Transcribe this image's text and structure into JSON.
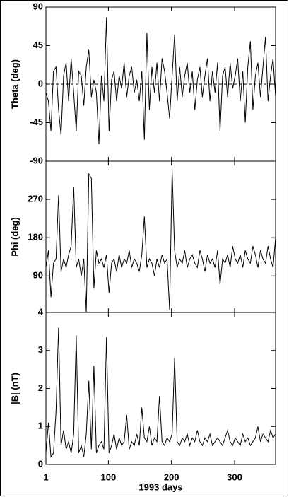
{
  "chart_data": [
    {
      "type": "line",
      "ylabel": "Theta (deg)",
      "color": "#000000",
      "zero_line": true,
      "ylim": [
        -90,
        90
      ],
      "yticks": [
        -90,
        -45,
        0,
        45,
        90
      ],
      "xlim": [
        1,
        365
      ],
      "x": [
        1,
        5,
        9,
        13,
        17,
        21,
        25,
        29,
        33,
        37,
        41,
        45,
        49,
        53,
        57,
        61,
        65,
        69,
        73,
        77,
        81,
        85,
        89,
        93,
        97,
        101,
        105,
        109,
        113,
        117,
        121,
        125,
        129,
        133,
        137,
        141,
        145,
        149,
        153,
        157,
        161,
        165,
        169,
        173,
        177,
        181,
        185,
        189,
        193,
        197,
        201,
        205,
        209,
        213,
        217,
        221,
        225,
        229,
        233,
        237,
        241,
        245,
        249,
        253,
        257,
        261,
        265,
        269,
        273,
        277,
        281,
        285,
        289,
        293,
        297,
        301,
        305,
        309,
        313,
        317,
        321,
        325,
        329,
        333,
        337,
        341,
        345,
        349,
        353,
        357,
        361,
        365
      ],
      "values": [
        -10,
        -20,
        -55,
        15,
        20,
        -30,
        -60,
        10,
        25,
        -20,
        30,
        -10,
        -55,
        15,
        10,
        -25,
        20,
        40,
        -15,
        5,
        -10,
        -70,
        10,
        -20,
        78,
        -55,
        5,
        15,
        -20,
        10,
        -5,
        25,
        -15,
        10,
        20,
        -10,
        5,
        -20,
        15,
        -65,
        60,
        -30,
        20,
        -10,
        25,
        -20,
        30,
        15,
        -10,
        -40,
        10,
        58,
        -20,
        20,
        -15,
        10,
        25,
        -10,
        15,
        -30,
        5,
        20,
        -15,
        10,
        30,
        -20,
        15,
        -10,
        25,
        -55,
        10,
        20,
        -15,
        25,
        -5,
        10,
        30,
        -20,
        15,
        -45,
        20,
        50,
        -30,
        10,
        25,
        -15,
        20,
        55,
        -20,
        10,
        30,
        -15
      ]
    },
    {
      "type": "line",
      "ylabel": "Phi (deg)",
      "color": "#000000",
      "ylim": [
        4,
        360
      ],
      "yticks": [
        4,
        90,
        180,
        270
      ],
      "xlim": [
        1,
        365
      ],
      "x": [
        1,
        5,
        9,
        13,
        17,
        21,
        25,
        29,
        33,
        37,
        41,
        45,
        49,
        53,
        57,
        61,
        65,
        69,
        73,
        77,
        81,
        85,
        89,
        93,
        97,
        101,
        105,
        109,
        113,
        117,
        121,
        125,
        129,
        133,
        137,
        141,
        145,
        149,
        153,
        157,
        161,
        165,
        169,
        173,
        177,
        181,
        185,
        189,
        193,
        197,
        201,
        205,
        209,
        213,
        217,
        221,
        225,
        229,
        233,
        237,
        241,
        245,
        249,
        253,
        257,
        261,
        265,
        269,
        273,
        277,
        281,
        285,
        289,
        293,
        297,
        301,
        305,
        309,
        313,
        317,
        321,
        325,
        329,
        333,
        337,
        341,
        345,
        349,
        353,
        357,
        361,
        365
      ],
      "values": [
        110,
        150,
        40,
        120,
        130,
        280,
        100,
        130,
        110,
        140,
        160,
        300,
        110,
        130,
        90,
        130,
        4,
        330,
        320,
        60,
        150,
        120,
        130,
        110,
        140,
        50,
        120,
        130,
        100,
        140,
        110,
        130,
        120,
        150,
        110,
        130,
        120,
        100,
        140,
        230,
        110,
        130,
        120,
        90,
        130,
        110,
        140,
        120,
        130,
        10,
        340,
        150,
        110,
        130,
        120,
        150,
        110,
        130,
        140,
        120,
        110,
        150,
        130,
        100,
        140,
        120,
        130,
        110,
        150,
        70,
        130,
        120,
        140,
        110,
        160,
        130,
        120,
        140,
        110,
        150,
        130,
        120,
        160,
        140,
        110,
        150,
        130,
        120,
        160,
        130,
        110,
        180
      ]
    },
    {
      "type": "line",
      "ylabel": "|B| (nT)",
      "xlabel": "1993 days",
      "color": "#000000",
      "ylim": [
        0,
        4
      ],
      "yticks": [
        0,
        1,
        2,
        3
      ],
      "xlim": [
        1,
        365
      ],
      "xticks": [
        1,
        100,
        200,
        300
      ],
      "x": [
        1,
        5,
        9,
        13,
        17,
        21,
        25,
        29,
        33,
        37,
        41,
        45,
        49,
        53,
        57,
        61,
        65,
        69,
        73,
        77,
        81,
        85,
        89,
        93,
        97,
        101,
        105,
        109,
        113,
        117,
        121,
        125,
        129,
        133,
        137,
        141,
        145,
        149,
        153,
        157,
        161,
        165,
        169,
        173,
        177,
        181,
        185,
        189,
        193,
        197,
        201,
        205,
        209,
        213,
        217,
        221,
        225,
        229,
        233,
        237,
        241,
        245,
        249,
        253,
        257,
        261,
        265,
        269,
        273,
        277,
        281,
        285,
        289,
        293,
        297,
        301,
        305,
        309,
        313,
        317,
        321,
        325,
        329,
        333,
        337,
        341,
        345,
        349,
        353,
        357,
        361,
        365
      ],
      "values": [
        0.3,
        1.1,
        0.2,
        0.3,
        1.4,
        3.6,
        0.5,
        0.9,
        0.4,
        0.6,
        0.3,
        0.8,
        3.4,
        0.3,
        0.5,
        0.2,
        0.8,
        2.2,
        0.4,
        2.6,
        0.3,
        0.5,
        0.6,
        0.4,
        3.35,
        0.3,
        0.5,
        0.8,
        0.4,
        0.7,
        0.5,
        0.6,
        1.3,
        0.4,
        0.6,
        0.5,
        0.8,
        0.5,
        1.5,
        0.7,
        0.6,
        1.0,
        0.5,
        0.7,
        0.6,
        1.8,
        0.6,
        0.5,
        0.7,
        0.6,
        0.8,
        2.8,
        0.6,
        0.5,
        0.7,
        0.6,
        0.8,
        0.5,
        0.7,
        0.6,
        0.9,
        0.6,
        0.5,
        0.7,
        0.6,
        0.8,
        0.5,
        0.6,
        0.7,
        0.6,
        0.5,
        0.7,
        0.9,
        0.6,
        0.5,
        0.7,
        0.6,
        0.5,
        0.8,
        0.6,
        0.7,
        0.5,
        0.6,
        0.7,
        1.0,
        0.6,
        0.8,
        0.7,
        0.6,
        0.9,
        0.7,
        0.8
      ]
    }
  ]
}
